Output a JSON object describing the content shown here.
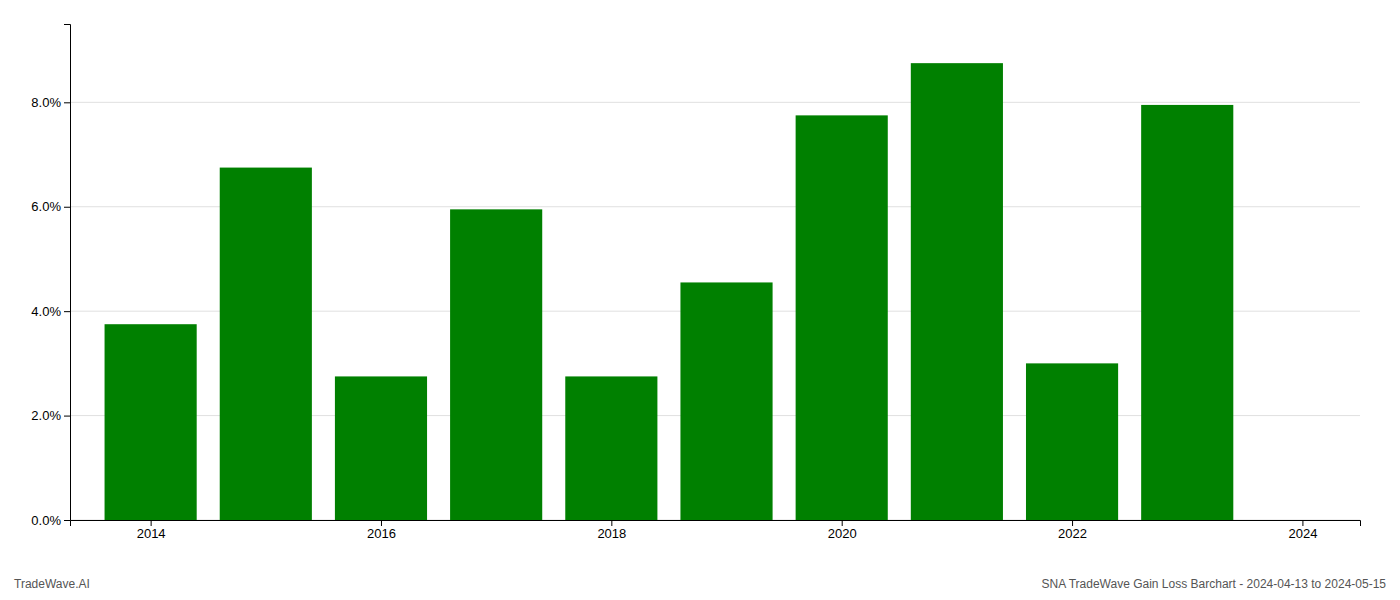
{
  "chart_data": {
    "type": "bar",
    "x": [
      2014,
      2015,
      2016,
      2017,
      2018,
      2019,
      2020,
      2021,
      2022,
      2023
    ],
    "values": [
      0.0375,
      0.0675,
      0.0275,
      0.0595,
      0.0275,
      0.0455,
      0.0775,
      0.0875,
      0.03,
      0.0795
    ],
    "color": "#008000",
    "xlim": [
      2013.3,
      2024.5
    ],
    "xticks": [
      2014,
      2016,
      2018,
      2020,
      2022,
      2024
    ],
    "ylim": [
      0.0,
      0.095
    ],
    "yticks": [
      {
        "value": 0.0,
        "label": "0.0%"
      },
      {
        "value": 0.02,
        "label": "2.0%"
      },
      {
        "value": 0.04,
        "label": "4.0%"
      },
      {
        "value": 0.06,
        "label": "6.0%"
      },
      {
        "value": 0.08,
        "label": "8.0%"
      }
    ],
    "grid": true,
    "annotations": [
      "TradeWave.AI",
      "SNA TradeWave Gain Loss Barchart - 2024-04-13 to 2024-05-15"
    ]
  }
}
